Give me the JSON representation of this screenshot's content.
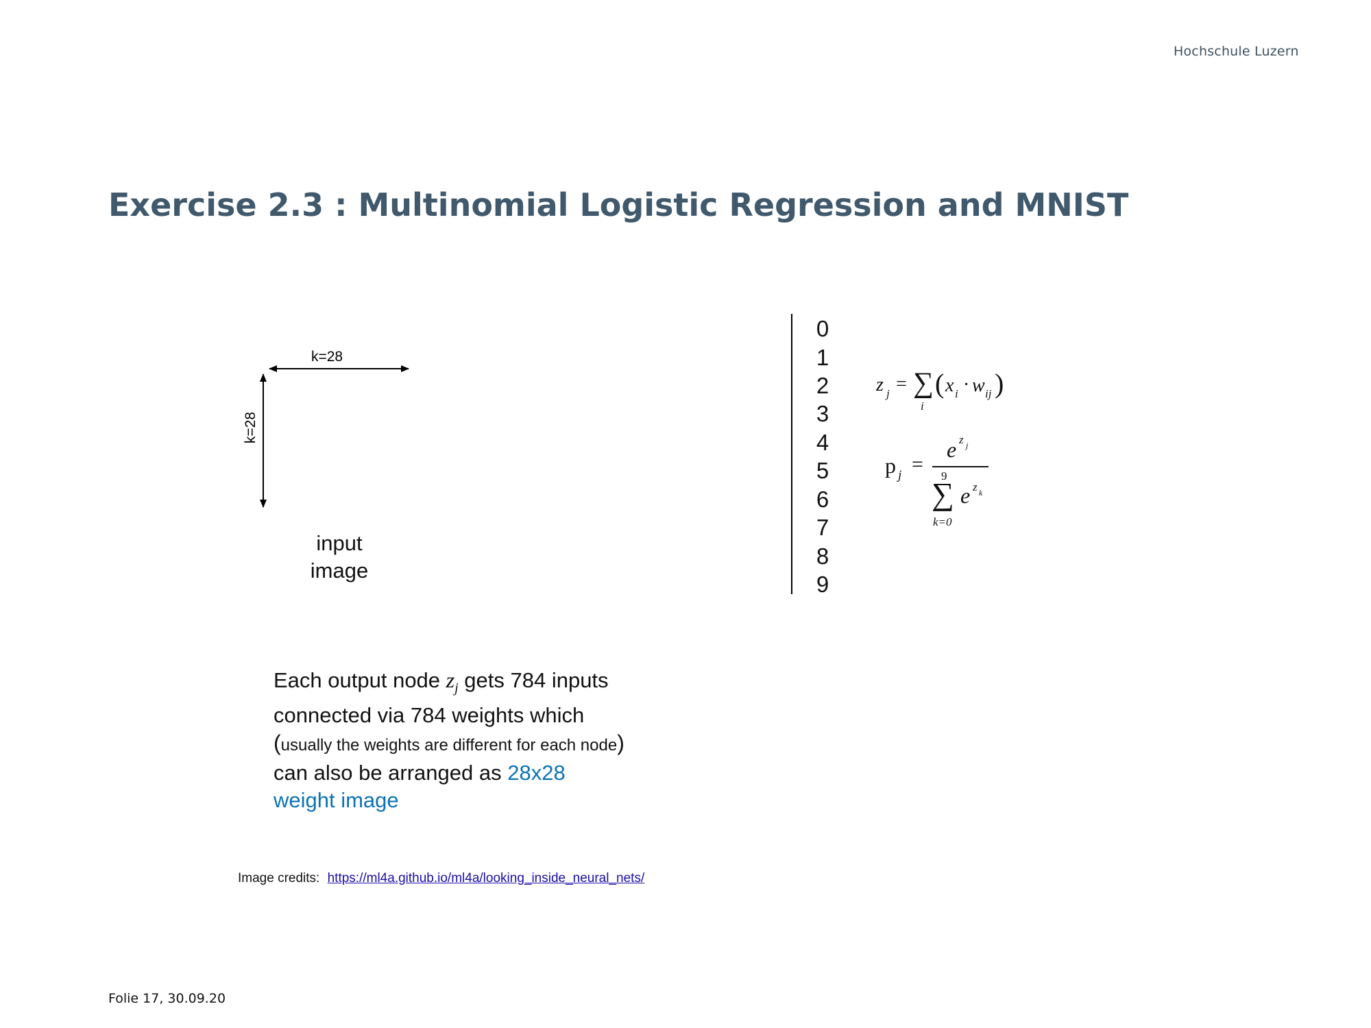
{
  "brand": "Hochschule Luzern",
  "title": "Exercise 2.3 : Multinomial Logistic Regression and MNIST",
  "input_image": {
    "width_label": "k=28",
    "height_label": "k=28",
    "caption_line1": "input",
    "caption_line2": "image"
  },
  "output_digits": [
    "0",
    "1",
    "2",
    "3",
    "4",
    "5",
    "6",
    "7",
    "8",
    "9"
  ],
  "formula_z": {
    "lhs": "z",
    "lhs_sub": "j",
    "eq": "=",
    "sum": "∑",
    "sum_sub": "i",
    "open": "(",
    "x": "x",
    "x_sub": "i",
    "dot": "·",
    "w": "w",
    "w_sub": "ij",
    "close": ")"
  },
  "formula_p": {
    "lhs": "p",
    "lhs_sub": "j",
    "eq": "=",
    "num_base": "e",
    "num_exp": "z",
    "num_exp_sub": "j",
    "sum": "∑",
    "sum_upper": "9",
    "sum_lower": "k=0",
    "den_base": "e",
    "den_exp": "z",
    "den_exp_sub": "k"
  },
  "description": {
    "line1_pre": "Each output node ",
    "line1_var": "z",
    "line1_var_sub": "j",
    "line1_post": " gets 784 inputs",
    "line2": "connected via 784 weights which",
    "line3_open": "(",
    "line3_small": "usually the weights are different for each node",
    "line3_close": ")",
    "line4_pre": "can also be arranged as ",
    "line4_blue": "28x28",
    "line5_blue": "weight image"
  },
  "credits": {
    "label": "Image credits:",
    "link": "https://ml4a.github.io/ml4a/looking_inside_neural_nets/"
  },
  "footer": "Folie  17, 30.09.20",
  "colors": {
    "title": "#40596c",
    "highlight": "#0b72b5",
    "link": "#1a0dab"
  }
}
